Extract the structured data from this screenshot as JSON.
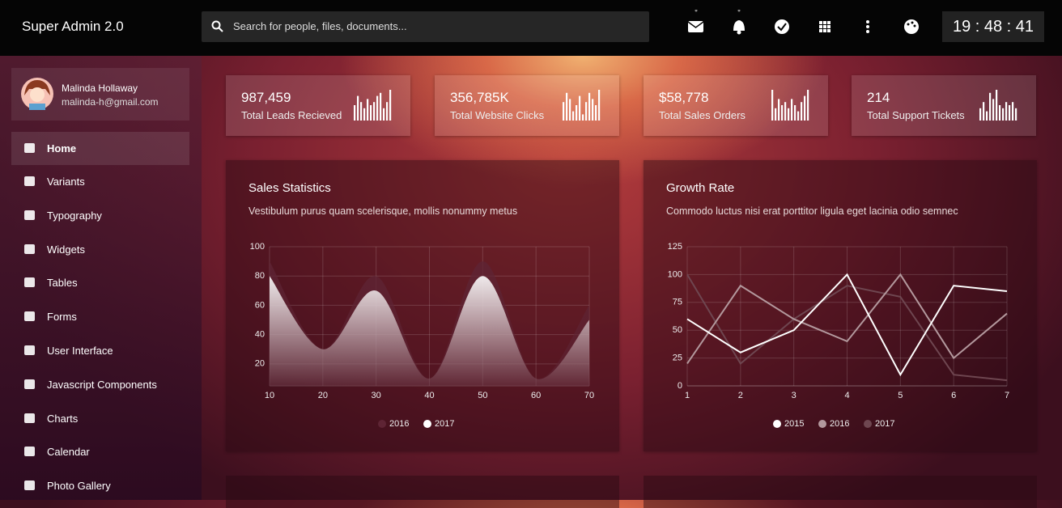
{
  "header": {
    "brand": "Super Admin 2.0",
    "search_placeholder": "Search for people, files, documents...",
    "clock": "19 : 48 : 41"
  },
  "user": {
    "name": "Malinda Hollaway",
    "email": "malinda-h@gmail.com"
  },
  "nav": [
    "Home",
    "Variants",
    "Typography",
    "Widgets",
    "Tables",
    "Forms",
    "User Interface",
    "Javascript Components",
    "Charts",
    "Calendar",
    "Photo Gallery"
  ],
  "stats": [
    {
      "value": "987,459",
      "label": "Total Leads Recieved",
      "bars": [
        5,
        8,
        6,
        4,
        7,
        5,
        6,
        8,
        9,
        4,
        6,
        10
      ]
    },
    {
      "value": "356,785K",
      "label": "Total Website Clicks",
      "bars": [
        6,
        9,
        7,
        3,
        5,
        8,
        2,
        6,
        9,
        7,
        5,
        10
      ]
    },
    {
      "value": "$58,778",
      "label": "Total Sales Orders",
      "bars": [
        10,
        4,
        7,
        5,
        6,
        4,
        7,
        5,
        3,
        6,
        8,
        10
      ]
    },
    {
      "value": "214",
      "label": "Total Support Tickets",
      "bars": [
        4,
        6,
        3,
        9,
        7,
        10,
        5,
        4,
        6,
        5,
        6,
        4
      ]
    }
  ],
  "chart_data": [
    {
      "type": "area",
      "title": "Sales Statistics",
      "subtitle": "Vestibulum purus quam scelerisque, mollis nonummy metus",
      "x": [
        10,
        20,
        30,
        40,
        50,
        60,
        70
      ],
      "xlim": [
        10,
        70
      ],
      "xticks": [
        10,
        20,
        30,
        40,
        50,
        60,
        70
      ],
      "ylim": [
        5,
        100
      ],
      "yticks": [
        20,
        40,
        60,
        80,
        100
      ],
      "grid": true,
      "series": [
        {
          "name": "2016",
          "color": "#5e2434",
          "values": [
            90,
            30,
            80,
            10,
            90,
            10,
            60
          ]
        },
        {
          "name": "2017",
          "color": "#ffffff",
          "values": [
            80,
            30,
            70,
            10,
            80,
            10,
            50
          ]
        }
      ]
    },
    {
      "type": "line",
      "title": "Growth Rate",
      "subtitle": "Commodo luctus nisi erat porttitor ligula eget lacinia odio semnec",
      "x": [
        1,
        2,
        3,
        4,
        5,
        6,
        7
      ],
      "xlim": [
        1,
        7
      ],
      "xticks": [
        1,
        2,
        3,
        4,
        5,
        6,
        7
      ],
      "ylim": [
        0,
        125
      ],
      "yticks": [
        0,
        25,
        50,
        75,
        100,
        125
      ],
      "grid": true,
      "series": [
        {
          "name": "2015",
          "color": "#ffffff",
          "values": [
            60,
            30,
            50,
            100,
            10,
            90,
            85
          ]
        },
        {
          "name": "2016",
          "color": "#b3989d",
          "values": [
            20,
            90,
            60,
            40,
            100,
            25,
            65
          ]
        },
        {
          "name": "2017",
          "color": "#6e4650",
          "values": [
            100,
            20,
            60,
            90,
            80,
            10,
            5
          ]
        }
      ]
    }
  ]
}
